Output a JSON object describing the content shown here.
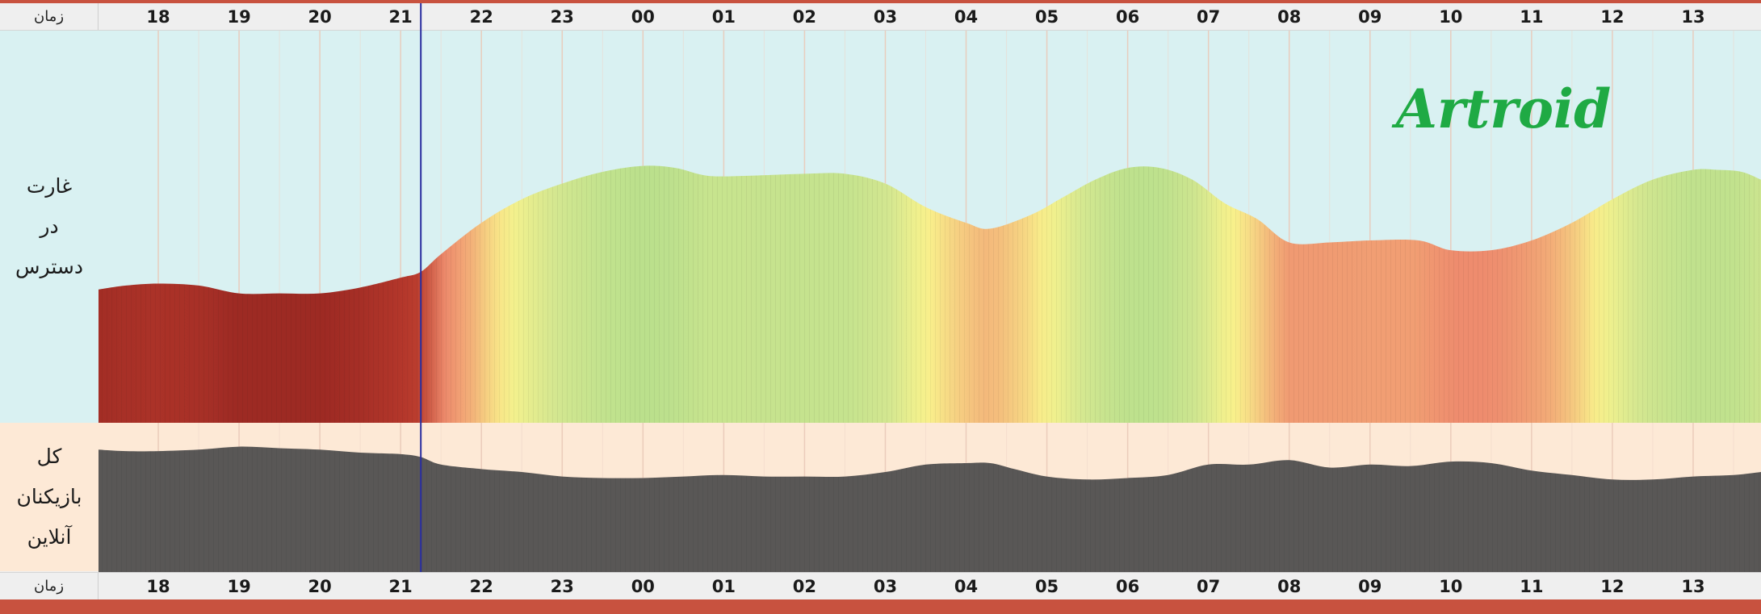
{
  "time_axis_label": "زمان",
  "row_labels": {
    "raid": [
      "غارت",
      "در",
      "دسترس"
    ],
    "players": [
      "کل",
      "بازیکنان",
      "آنلاین"
    ]
  },
  "watermark": "Artroid",
  "colors": {
    "raid_bg": "#d9f1f2",
    "players_bg": "#fde9d6",
    "players_fill": "#595756",
    "current_time_line": "#2a2ea0",
    "watermark": "#1faa44",
    "frame": "#c8523f"
  },
  "chart_data": [
    {
      "type": "area",
      "title": "",
      "row_label": "غارت در دسترس",
      "x_ticks": [
        "18",
        "19",
        "20",
        "21",
        "22",
        "23",
        "00",
        "01",
        "02",
        "03",
        "04",
        "05",
        "06",
        "07",
        "08",
        "09",
        "10",
        "11",
        "12",
        "13"
      ],
      "current_time": 21.25,
      "x_range": [
        17.26,
        37.84
      ],
      "y_range": [
        0,
        100
      ],
      "x": [
        17.26,
        17.6,
        18.0,
        18.5,
        19.0,
        19.5,
        20.0,
        20.5,
        21.0,
        21.25,
        21.5,
        22.0,
        22.5,
        23.0,
        23.5,
        24.0,
        24.4,
        24.8,
        25.3,
        26.0,
        26.5,
        27.0,
        27.5,
        28.0,
        28.3,
        28.8,
        29.2,
        29.6,
        30.0,
        30.4,
        30.8,
        31.2,
        31.6,
        32.0,
        32.5,
        33.0,
        33.6,
        34.0,
        34.5,
        35.0,
        35.5,
        36.0,
        36.5,
        37.0,
        37.3,
        37.6,
        37.84
      ],
      "y": [
        34,
        35,
        35.5,
        35,
        33,
        33,
        33,
        34.5,
        37,
        38.5,
        43,
        51,
        57,
        61,
        64,
        65.5,
        65,
        63,
        63,
        63.5,
        63.5,
        61,
        55,
        51,
        49.5,
        53,
        57.5,
        62,
        65,
        65,
        62,
        56,
        52,
        46,
        46,
        46.5,
        46.5,
        44,
        44,
        46.5,
        51,
        57,
        62,
        64.5,
        64.5,
        64,
        62
      ],
      "color_scale": "low = dark red, high = green (red → orange → yellow → green)"
    },
    {
      "type": "area",
      "title": "",
      "row_label": "کل بازیکنان آنلاین",
      "x_ticks": [
        "18",
        "19",
        "20",
        "21",
        "22",
        "23",
        "00",
        "01",
        "02",
        "03",
        "04",
        "05",
        "06",
        "07",
        "08",
        "09",
        "10",
        "11",
        "12",
        "13"
      ],
      "x_range": [
        17.26,
        37.84
      ],
      "y_range": [
        0,
        100
      ],
      "x": [
        17.26,
        17.6,
        18.0,
        18.5,
        19.0,
        19.5,
        20.0,
        20.5,
        21.0,
        21.25,
        21.5,
        22.0,
        22.5,
        23.0,
        23.5,
        24.0,
        24.5,
        25.0,
        25.5,
        26.0,
        26.5,
        27.0,
        27.5,
        28.0,
        28.3,
        28.6,
        29.0,
        29.5,
        30.0,
        30.5,
        31.0,
        31.5,
        32.0,
        32.5,
        33.0,
        33.5,
        34.0,
        34.5,
        35.0,
        35.5,
        36.0,
        36.5,
        37.0,
        37.5,
        37.84
      ],
      "y": [
        82,
        81,
        81,
        82,
        84,
        83,
        82,
        80,
        79,
        77,
        72,
        69,
        67,
        64,
        63,
        63,
        64,
        65,
        64,
        64,
        64,
        67,
        72,
        73,
        73,
        69,
        64,
        62,
        63,
        65,
        72,
        72,
        75,
        70,
        72,
        71,
        74,
        73,
        68,
        65,
        62,
        62,
        64,
        65,
        67
      ],
      "color_scale": "solid dark gray"
    }
  ]
}
